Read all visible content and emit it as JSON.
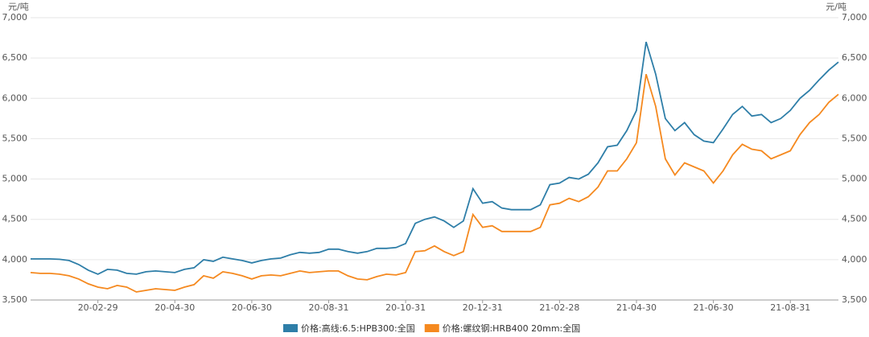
{
  "chart_data": {
    "type": "line",
    "y_label": "元/吨",
    "y2_label": "元/吨",
    "categories": [
      null,
      null,
      null,
      null,
      null,
      null,
      null,
      "20-02-29",
      null,
      null,
      null,
      null,
      null,
      null,
      null,
      "20-04-30",
      null,
      null,
      null,
      null,
      null,
      null,
      null,
      "20-06-30",
      null,
      null,
      null,
      null,
      null,
      null,
      null,
      "20-08-31",
      null,
      null,
      null,
      null,
      null,
      null,
      null,
      "20-10-31",
      null,
      null,
      null,
      null,
      null,
      null,
      null,
      "20-12-31",
      null,
      null,
      null,
      null,
      null,
      null,
      null,
      "21-02-28",
      null,
      null,
      null,
      null,
      null,
      null,
      null,
      "21-04-30",
      null,
      null,
      null,
      null,
      null,
      null,
      null,
      "21-06-30",
      null,
      null,
      null,
      null,
      null,
      null,
      null,
      "21-08-31",
      null,
      null,
      null,
      null,
      null
    ],
    "series": [
      {
        "name": "价格:高线:6.5:HPB300:全国",
        "color": "#2e7ea8",
        "values": [
          4010,
          4010,
          4010,
          4005,
          3990,
          3940,
          3870,
          3820,
          3880,
          3870,
          3830,
          3820,
          3850,
          3860,
          3850,
          3840,
          3880,
          3900,
          4000,
          3980,
          4030,
          4010,
          3990,
          3960,
          3990,
          4010,
          4020,
          4060,
          4090,
          4080,
          4090,
          4130,
          4130,
          4100,
          4080,
          4100,
          4140,
          4140,
          4150,
          4200,
          4450,
          4500,
          4530,
          4480,
          4400,
          4480,
          4880,
          4700,
          4720,
          4640,
          4620,
          4620,
          4620,
          4680,
          4930,
          4950,
          5020,
          5000,
          5060,
          5200,
          5400,
          5420,
          5600,
          5850,
          6700,
          6300,
          5750,
          5600,
          5700,
          5550,
          5470,
          5450,
          5620,
          5800,
          5900,
          5780,
          5800,
          5700,
          5750,
          5850,
          6000,
          6100,
          6230,
          6350,
          6450
        ]
      },
      {
        "name": "价格:螺纹钢:HRB400 20mm:全国",
        "color": "#f5891f",
        "values": [
          3840,
          3830,
          3830,
          3820,
          3800,
          3760,
          3700,
          3660,
          3640,
          3680,
          3660,
          3600,
          3620,
          3640,
          3630,
          3620,
          3660,
          3690,
          3800,
          3770,
          3850,
          3830,
          3800,
          3760,
          3800,
          3810,
          3800,
          3830,
          3860,
          3840,
          3850,
          3860,
          3860,
          3800,
          3760,
          3750,
          3790,
          3820,
          3810,
          3840,
          4100,
          4110,
          4170,
          4100,
          4050,
          4100,
          4560,
          4400,
          4420,
          4350,
          4350,
          4350,
          4350,
          4400,
          4680,
          4700,
          4760,
          4720,
          4780,
          4900,
          5100,
          5100,
          5250,
          5450,
          6300,
          5900,
          5250,
          5050,
          5200,
          5150,
          5100,
          4950,
          5100,
          5300,
          5430,
          5370,
          5350,
          5250,
          5300,
          5350,
          5550,
          5700,
          5800,
          5950,
          6050
        ]
      }
    ],
    "ylim": [
      3500,
      7000
    ],
    "yticks": [
      {
        "value": 3500,
        "label": "3,500"
      },
      {
        "value": 4000,
        "label": "4,000"
      },
      {
        "value": 4500,
        "label": "4,500"
      },
      {
        "value": 5000,
        "label": "5,000"
      },
      {
        "value": 5500,
        "label": "5,500"
      },
      {
        "value": 6000,
        "label": "6,000"
      },
      {
        "value": 6500,
        "label": "6,500"
      },
      {
        "value": 7000,
        "label": "7,000"
      }
    ],
    "y2lim": [
      3500,
      7000
    ],
    "y2ticks": [
      {
        "value": 3500,
        "label": "3,500"
      },
      {
        "value": 4000,
        "label": "4,000"
      },
      {
        "value": 4500,
        "label": "4,500"
      },
      {
        "value": 5000,
        "label": "5,000"
      },
      {
        "value": 5500,
        "label": "5,500"
      },
      {
        "value": 6000,
        "label": "6,000"
      },
      {
        "value": 6500,
        "label": "6,500"
      },
      {
        "value": 7000,
        "label": "7,000"
      }
    ],
    "grid": true,
    "legend": "bottom"
  }
}
